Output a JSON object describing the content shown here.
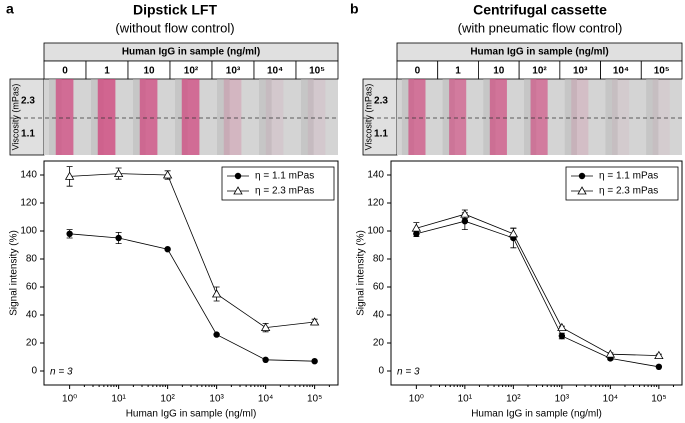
{
  "chart_data": [
    {
      "type": "line",
      "panel_label": "a",
      "title": "Dipstick LFT",
      "subtitle": "(without flow control)",
      "strip": {
        "header": "Human IgG in sample (ng/ml)",
        "columns": [
          "0",
          "1",
          "10",
          "10²",
          "10³",
          "10⁴",
          "10⁵"
        ],
        "row_axis_label": "Viscosity (mPas)",
        "rows": [
          "2.3",
          "1.1"
        ]
      },
      "x": [
        1,
        10,
        100,
        1000,
        10000,
        100000
      ],
      "xscale": "log",
      "xlim": [
        0.3,
        300000
      ],
      "xticks": [
        {
          "value": 1,
          "label": "10⁰"
        },
        {
          "value": 10,
          "label": "10¹"
        },
        {
          "value": 100,
          "label": "10²"
        },
        {
          "value": 1000,
          "label": "10³"
        },
        {
          "value": 10000,
          "label": "10⁴"
        },
        {
          "value": 100000,
          "label": "10⁵"
        }
      ],
      "ylim": [
        -10,
        150
      ],
      "yticks": [
        0,
        20,
        40,
        60,
        80,
        100,
        120,
        140
      ],
      "xlabel": "Human IgG in sample (ng/ml)",
      "ylabel": "Signal intensity (%)",
      "annotation": "n = 3",
      "legend_position": "upper right",
      "series": [
        {
          "name": "η = 1.1 mPas",
          "color": "#000000",
          "marker": "filled-circle",
          "values": [
            98,
            95,
            87,
            26,
            8,
            7
          ],
          "errors": [
            3,
            4,
            0,
            0,
            0,
            0
          ]
        },
        {
          "name": "η = 2.3 mPas",
          "color": "#000000",
          "marker": "open-triangle",
          "values": [
            139,
            141,
            140,
            55,
            31,
            35
          ],
          "errors": [
            7,
            4,
            3,
            5,
            3,
            2
          ]
        }
      ]
    },
    {
      "type": "line",
      "panel_label": "b",
      "title": "Centrifugal cassette",
      "subtitle": "(with pneumatic flow control)",
      "strip": {
        "header": "Human IgG in sample (ng/ml)",
        "columns": [
          "0",
          "1",
          "10",
          "10²",
          "10³",
          "10⁴",
          "10⁵"
        ],
        "row_axis_label": "Viscosity (mPas)",
        "rows": [
          "2.3",
          "1.1"
        ]
      },
      "x": [
        1,
        10,
        100,
        1000,
        10000,
        100000
      ],
      "xscale": "log",
      "xlim": [
        0.3,
        300000
      ],
      "xticks": [
        {
          "value": 1,
          "label": "10⁰"
        },
        {
          "value": 10,
          "label": "10¹"
        },
        {
          "value": 100,
          "label": "10²"
        },
        {
          "value": 1000,
          "label": "10³"
        },
        {
          "value": 10000,
          "label": "10⁴"
        },
        {
          "value": 100000,
          "label": "10⁵"
        }
      ],
      "ylim": [
        -10,
        150
      ],
      "yticks": [
        0,
        20,
        40,
        60,
        80,
        100,
        120,
        140
      ],
      "xlabel": "Human IgG in sample (ng/ml)",
      "ylabel": "Signal intensity (%)",
      "annotation": "n = 3",
      "legend_position": "upper right",
      "series": [
        {
          "name": "η = 1.1 mPas",
          "color": "#000000",
          "marker": "filled-circle",
          "values": [
            98,
            107,
            95,
            25,
            9,
            3
          ],
          "errors": [
            2,
            6,
            7,
            2,
            1,
            0
          ]
        },
        {
          "name": "η = 2.3 mPas",
          "color": "#000000",
          "marker": "open-triangle",
          "values": [
            102,
            112,
            98,
            31,
            12,
            11
          ],
          "errors": [
            4,
            3,
            4,
            1,
            1,
            1
          ]
        }
      ]
    }
  ]
}
